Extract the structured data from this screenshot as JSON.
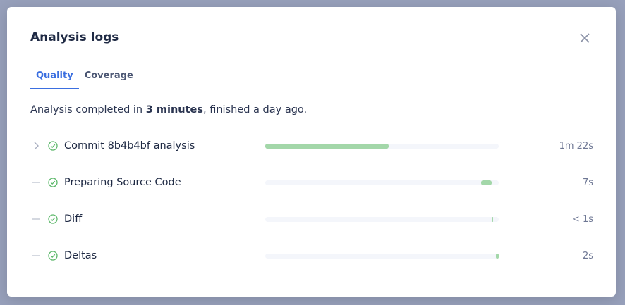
{
  "modal": {
    "title": "Analysis logs",
    "close_icon": "close-icon",
    "tabs": [
      {
        "label": "Quality",
        "active": true
      },
      {
        "label": "Coverage",
        "active": false
      }
    ],
    "summary": {
      "prefix": "Analysis completed in ",
      "bold": "3 minutes",
      "suffix": ", finished a day ago."
    },
    "accent_color": "#3b6fe0",
    "success_color": "#5cb86a",
    "rows": [
      {
        "label": "Commit 8b4b4bf analysis",
        "duration": "1m 22s",
        "lead_icon": "chevron-right-icon",
        "status_icon": "check-circle-icon",
        "bar_start_pct": 0,
        "bar_end_pct": 53
      },
      {
        "label": "Preparing Source Code",
        "duration": "7s",
        "lead_icon": "dash-icon",
        "status_icon": "check-circle-icon",
        "bar_start_pct": 92.4,
        "bar_end_pct": 96.9
      },
      {
        "label": "Diff",
        "duration": "< 1s",
        "lead_icon": "dash-icon",
        "status_icon": "check-circle-icon",
        "bar_start_pct": 97.3,
        "bar_end_pct": 97.6
      },
      {
        "label": "Deltas",
        "duration": "2s",
        "lead_icon": "dash-icon",
        "status_icon": "check-circle-icon",
        "bar_start_pct": 98.8,
        "bar_end_pct": 100
      }
    ]
  }
}
